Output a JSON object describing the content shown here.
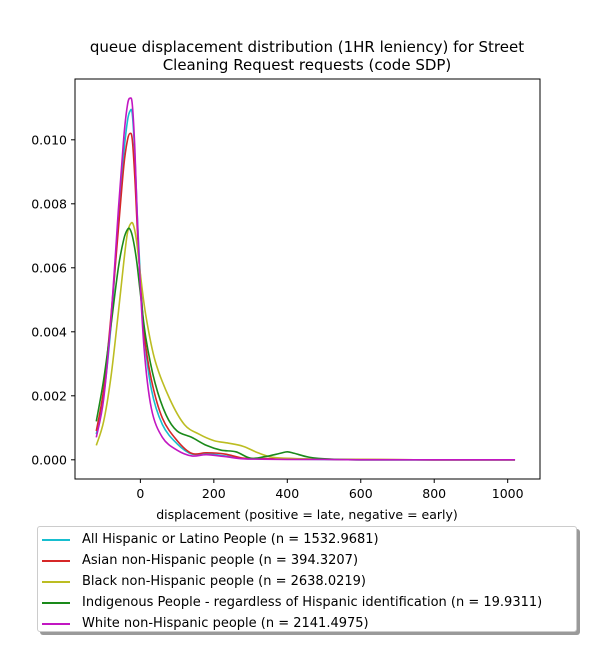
{
  "chart_data": {
    "type": "line",
    "title_lines": [
      "queue displacement distribution (1HR leniency) for Street",
      "Cleaning Request  requests (code SDP)"
    ],
    "xlabel": "displacement (positive = late, negative = early)",
    "ylabel": "",
    "xlim": [
      -178,
      1088
    ],
    "ylim": [
      -0.0006,
      0.0119
    ],
    "xticks": [
      0,
      200,
      400,
      600,
      800,
      1000
    ],
    "yticks": [
      0.0,
      0.002,
      0.004,
      0.006,
      0.008,
      0.01
    ],
    "ytick_labels": [
      "0.000",
      "0.002",
      "0.004",
      "0.006",
      "0.008",
      "0.010"
    ],
    "grid": false,
    "legend_position": "below",
    "series": [
      {
        "name": "All Hispanic or Latino People (n = 1532.9681)",
        "color": "#17becf",
        "x": [
          -120,
          -100,
          -80,
          -60,
          -45,
          -35,
          -28,
          -22,
          -15,
          -5,
          10,
          30,
          60,
          100,
          140,
          180,
          230,
          280,
          330,
          400,
          500,
          600,
          800,
          1020
        ],
        "y": [
          0.0008,
          0.002,
          0.0042,
          0.0075,
          0.0096,
          0.0106,
          0.0109,
          0.0108,
          0.0095,
          0.0068,
          0.004,
          0.0022,
          0.0011,
          0.0005,
          0.00018,
          0.0002,
          0.00012,
          4e-05,
          3e-05,
          2e-05,
          1e-05,
          0.0,
          0.0,
          0.0
        ]
      },
      {
        "name": "Asian non-Hispanic people (n = 394.3207)",
        "color": "#d62728",
        "x": [
          -120,
          -100,
          -80,
          -60,
          -45,
          -35,
          -28,
          -22,
          -15,
          -5,
          10,
          30,
          60,
          100,
          140,
          180,
          230,
          280,
          330,
          400,
          500,
          600,
          800,
          1020
        ],
        "y": [
          0.0009,
          0.0022,
          0.0045,
          0.0072,
          0.0092,
          0.01,
          0.0102,
          0.01,
          0.0088,
          0.0065,
          0.004,
          0.0025,
          0.0013,
          0.0006,
          0.0002,
          0.00022,
          0.00018,
          5e-05,
          4e-05,
          3e-05,
          2e-05,
          1e-05,
          0.0,
          0.0
        ]
      },
      {
        "name": "Black non-Hispanic people (n = 2638.0219)",
        "color": "#bcbd22",
        "x": [
          -120,
          -100,
          -80,
          -60,
          -45,
          -35,
          -25,
          -18,
          -10,
          0,
          15,
          40,
          80,
          120,
          160,
          200,
          240,
          280,
          320,
          360,
          420,
          500,
          600,
          800,
          1020
        ],
        "y": [
          0.00045,
          0.0012,
          0.0026,
          0.0046,
          0.0062,
          0.0071,
          0.0074,
          0.0073,
          0.0068,
          0.0058,
          0.0045,
          0.0031,
          0.0019,
          0.0011,
          0.0008,
          0.0006,
          0.00052,
          0.00042,
          0.00022,
          8e-05,
          4e-05,
          2e-05,
          1e-05,
          0.0,
          0.0
        ]
      },
      {
        "name": "Indigenous People - regardless of Hispanic identification (n = 19.9311)",
        "color": "#1a8a1a",
        "x": [
          -120,
          -100,
          -80,
          -60,
          -45,
          -35,
          -28,
          -20,
          -10,
          0,
          15,
          40,
          70,
          100,
          140,
          180,
          220,
          260,
          300,
          340,
          380,
          400,
          420,
          460,
          520,
          600,
          800,
          1020
        ],
        "y": [
          0.0012,
          0.0025,
          0.0042,
          0.006,
          0.0069,
          0.0072,
          0.0072,
          0.0069,
          0.0062,
          0.0052,
          0.0038,
          0.0024,
          0.0014,
          0.0009,
          0.0007,
          0.00045,
          0.0003,
          0.00025,
          5e-05,
          0.0001,
          0.0002,
          0.00025,
          0.0002,
          8e-05,
          2e-05,
          0.0,
          0.0,
          0.0
        ]
      },
      {
        "name": "White non-Hispanic people (n = 2141.4975)",
        "color": "#c217c2",
        "x": [
          -120,
          -100,
          -80,
          -60,
          -45,
          -35,
          -28,
          -22,
          -15,
          -5,
          10,
          30,
          60,
          100,
          140,
          180,
          230,
          280,
          330,
          400,
          500,
          600,
          800,
          1020
        ],
        "y": [
          0.0007,
          0.0019,
          0.0044,
          0.0078,
          0.0101,
          0.0111,
          0.0113,
          0.0111,
          0.0097,
          0.0066,
          0.0035,
          0.0016,
          0.0007,
          0.0003,
          0.00012,
          0.00016,
          0.0001,
          3e-05,
          2e-05,
          1e-05,
          1e-05,
          0.0,
          0.0,
          0.0
        ]
      }
    ]
  }
}
